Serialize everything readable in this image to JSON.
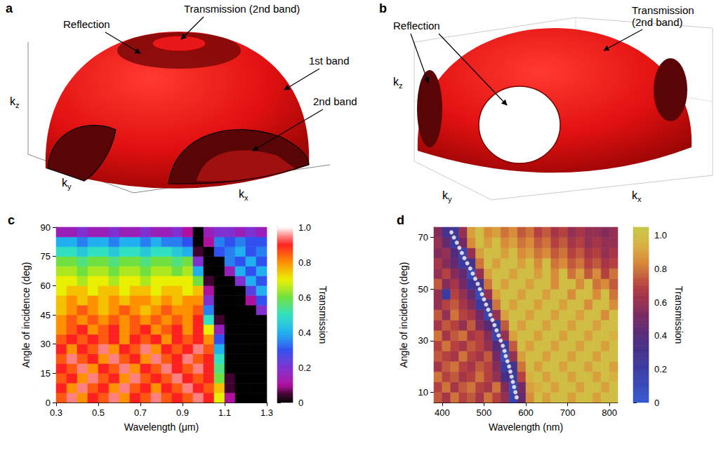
{
  "diagrams": [
    {
      "panel": "a",
      "axes": [
        {
          "base": "k",
          "sub": "z"
        },
        {
          "base": "k",
          "sub": "y"
        },
        {
          "base": "k",
          "sub": "x"
        }
      ],
      "labels": [
        "Reflection",
        "Transmission (2nd band)",
        "1st band",
        "2nd band"
      ]
    },
    {
      "panel": "b",
      "axes": [
        {
          "base": "k",
          "sub": "z"
        },
        {
          "base": "k",
          "sub": "y"
        },
        {
          "base": "k",
          "sub": "x"
        }
      ],
      "labels": [
        "Reflection",
        "Transmission (2nd band)"
      ]
    }
  ],
  "chart_data": [
    {
      "type": "heatmap",
      "panel": "c",
      "xlabel": "Wavelength (μm)",
      "ylabel": "Angle of incidence (deg)",
      "xlim": [
        0.3,
        1.3
      ],
      "xticks": [
        0.3,
        0.5,
        0.7,
        0.9,
        1.1,
        1.3
      ],
      "ylim": [
        0,
        90
      ],
      "yticks": [
        0,
        15,
        30,
        45,
        60,
        75,
        90
      ],
      "grid": false,
      "x": [
        0.325,
        0.375,
        0.425,
        0.475,
        0.525,
        0.575,
        0.625,
        0.675,
        0.725,
        0.775,
        0.825,
        0.875,
        0.925,
        0.975,
        1.025,
        1.075,
        1.125,
        1.175,
        1.225,
        1.275
      ],
      "y": [
        2.5,
        7.5,
        12.5,
        17.5,
        22.5,
        27.5,
        32.5,
        37.5,
        42.5,
        47.5,
        52.5,
        57.5,
        62.5,
        67.5,
        72.5,
        77.5,
        82.5,
        87.5
      ],
      "values": [
        [
          0.85,
          0.95,
          0.8,
          0.9,
          0.85,
          0.95,
          0.8,
          0.9,
          0.85,
          0.95,
          0.85,
          0.9,
          0.85,
          0.95,
          0.9,
          0.7,
          0.1,
          0,
          0,
          0
        ],
        [
          0.9,
          0.8,
          0.95,
          0.85,
          0.9,
          0.8,
          0.95,
          0.85,
          0.9,
          0.8,
          0.9,
          0.85,
          0.95,
          0.9,
          0.85,
          0.75,
          0.05,
          0,
          0,
          0
        ],
        [
          0.85,
          0.9,
          0.8,
          0.95,
          0.85,
          0.9,
          0.8,
          0.95,
          0.85,
          0.9,
          0.85,
          0.95,
          0.9,
          0.85,
          0.9,
          0.6,
          0.05,
          0,
          0,
          0
        ],
        [
          0.9,
          0.85,
          0.95,
          0.8,
          0.9,
          0.85,
          0.95,
          0.8,
          0.9,
          0.85,
          0.95,
          0.9,
          0.85,
          0.95,
          0.9,
          0.55,
          0,
          0,
          0,
          0
        ],
        [
          0.85,
          0.95,
          0.85,
          0.9,
          0.8,
          0.95,
          0.85,
          0.9,
          0.8,
          0.95,
          0.85,
          0.9,
          0.95,
          0.85,
          0.9,
          0.5,
          0,
          0,
          0,
          0
        ],
        [
          0.9,
          0.8,
          0.9,
          0.85,
          0.95,
          0.8,
          0.9,
          0.85,
          0.95,
          0.8,
          0.9,
          0.85,
          0.9,
          0.95,
          0.85,
          0.4,
          0,
          0,
          0,
          0
        ],
        [
          0.85,
          0.9,
          0.85,
          0.9,
          0.85,
          0.9,
          0.8,
          0.9,
          0.85,
          0.9,
          0.8,
          0.9,
          0.85,
          0.9,
          0.8,
          0.3,
          0,
          0,
          0,
          0
        ],
        [
          0.8,
          0.85,
          0.9,
          0.8,
          0.85,
          0.9,
          0.8,
          0.85,
          0.9,
          0.8,
          0.85,
          0.9,
          0.8,
          0.9,
          0.7,
          0.15,
          0,
          0,
          0,
          0
        ],
        [
          0.8,
          0.85,
          0.8,
          0.85,
          0.8,
          0.85,
          0.8,
          0.85,
          0.8,
          0.85,
          0.8,
          0.85,
          0.8,
          0.9,
          0.5,
          0.05,
          0,
          0,
          0,
          0
        ],
        [
          0.75,
          0.8,
          0.85,
          0.8,
          0.75,
          0.8,
          0.85,
          0.8,
          0.75,
          0.8,
          0.85,
          0.8,
          0.8,
          0.85,
          0.35,
          0,
          0,
          0,
          0,
          0.2
        ],
        [
          0.75,
          0.8,
          0.75,
          0.8,
          0.75,
          0.8,
          0.75,
          0.8,
          0.8,
          0.75,
          0.8,
          0.75,
          0.8,
          0.8,
          0.2,
          0,
          0,
          0,
          0.1,
          0.3
        ],
        [
          0.7,
          0.75,
          0.75,
          0.7,
          0.75,
          0.75,
          0.7,
          0.75,
          0.75,
          0.7,
          0.75,
          0.75,
          0.7,
          0.75,
          0.1,
          0,
          0,
          0,
          0.25,
          0.4
        ],
        [
          0.7,
          0.7,
          0.65,
          0.7,
          0.7,
          0.65,
          0.7,
          0.7,
          0.65,
          0.7,
          0.7,
          0.7,
          0.7,
          0.6,
          0.05,
          0,
          0,
          0.2,
          0.4,
          0.3
        ],
        [
          0.65,
          0.65,
          0.6,
          0.65,
          0.65,
          0.6,
          0.65,
          0.65,
          0.6,
          0.65,
          0.65,
          0.6,
          0.65,
          0.4,
          0,
          0,
          0.15,
          0.4,
          0.3,
          0.4
        ],
        [
          0.6,
          0.6,
          0.55,
          0.6,
          0.6,
          0.55,
          0.6,
          0.6,
          0.55,
          0.6,
          0.6,
          0.55,
          0.6,
          0.2,
          0,
          0,
          0.35,
          0.3,
          0.4,
          0.3
        ],
        [
          0.5,
          0.5,
          0.45,
          0.5,
          0.5,
          0.45,
          0.5,
          0.5,
          0.45,
          0.5,
          0.5,
          0.45,
          0.4,
          0.05,
          0,
          0.3,
          0.35,
          0.4,
          0.3,
          0.35
        ],
        [
          0.4,
          0.4,
          0.35,
          0.4,
          0.4,
          0.35,
          0.4,
          0.4,
          0.35,
          0.4,
          0.35,
          0.35,
          0.3,
          0,
          0.1,
          0.35,
          0.3,
          0.35,
          0.3,
          0.3
        ],
        [
          0.15,
          0.15,
          0.2,
          0.15,
          0.15,
          0.2,
          0.15,
          0.15,
          0.2,
          0.15,
          0.15,
          0.2,
          0.1,
          0,
          0.15,
          0.2,
          0.2,
          0.15,
          0.2,
          0.15
        ]
      ],
      "colorbar": {
        "label": "Transmission",
        "range": [
          0,
          1
        ],
        "ticks": [
          0,
          0.2,
          0.4,
          0.6,
          0.8,
          {
            "value": 1,
            "label": "1.0"
          }
        ]
      }
    },
    {
      "type": "heatmap",
      "panel": "d",
      "xlabel": "Wavelength (nm)",
      "ylabel": "Angle of incidence (deg)",
      "xlim": [
        380,
        820
      ],
      "xticks": [
        400,
        500,
        600,
        700,
        800
      ],
      "ylim": [
        6,
        74
      ],
      "yticks": [
        10,
        30,
        50,
        70
      ],
      "grid": false,
      "x": [
        390,
        410,
        430,
        450,
        470,
        490,
        510,
        530,
        550,
        570,
        590,
        610,
        630,
        650,
        670,
        690,
        710,
        730,
        750,
        770,
        790,
        810
      ],
      "y": [
        8,
        12,
        16,
        20,
        24,
        28,
        32,
        36,
        40,
        44,
        48,
        52,
        56,
        60,
        64,
        68,
        72
      ],
      "values": [
        [
          0.75,
          0.65,
          0.8,
          0.7,
          0.75,
          0.65,
          0.8,
          0.7,
          0.6,
          0.15,
          0.45,
          0.85,
          1,
          0.9,
          1,
          1,
          0.9,
          1,
          1,
          0.9,
          1,
          1
        ],
        [
          0.7,
          0.8,
          0.65,
          0.75,
          0.8,
          0.7,
          0.65,
          0.8,
          0.55,
          0.1,
          0.5,
          0.9,
          0.95,
          1,
          0.9,
          1,
          1,
          0.9,
          1,
          1,
          0.9,
          1
        ],
        [
          0.8,
          0.7,
          0.75,
          0.65,
          0.7,
          0.8,
          0.7,
          0.6,
          0.35,
          0.2,
          0.7,
          0.95,
          1,
          0.9,
          1,
          1,
          0.9,
          1,
          1,
          0.9,
          1,
          0.95
        ],
        [
          0.65,
          0.75,
          0.8,
          0.7,
          0.65,
          0.75,
          0.7,
          0.55,
          0.2,
          0.3,
          0.8,
          1,
          0.9,
          1,
          1,
          0.9,
          1,
          1,
          0.9,
          1,
          1,
          0.9
        ],
        [
          0.75,
          0.7,
          0.65,
          0.8,
          0.7,
          0.65,
          0.75,
          0.5,
          0.1,
          0.6,
          0.9,
          1,
          1,
          0.9,
          1,
          1,
          0.9,
          1,
          1,
          0.9,
          1,
          1
        ],
        [
          0.7,
          0.8,
          0.7,
          0.65,
          0.75,
          0.7,
          0.6,
          0.4,
          0.2,
          0.75,
          1,
          0.9,
          1,
          1,
          0.9,
          1,
          1,
          0.9,
          1,
          1,
          0.9,
          1
        ],
        [
          0.8,
          0.65,
          0.75,
          0.8,
          0.65,
          0.7,
          0.55,
          0.15,
          0.6,
          0.9,
          1,
          1,
          0.9,
          1,
          1,
          0.9,
          1,
          1,
          0.9,
          1,
          1,
          0.95
        ],
        [
          0.65,
          0.75,
          0.7,
          0.6,
          0.75,
          0.55,
          0.4,
          0.2,
          0.75,
          1,
          0.9,
          1,
          1,
          0.9,
          1,
          1,
          0.9,
          1,
          1,
          0.9,
          1,
          1
        ],
        [
          0.75,
          0.6,
          0.8,
          0.7,
          0.65,
          0.5,
          0.15,
          0.6,
          0.9,
          1,
          1,
          0.9,
          1,
          1,
          0.9,
          1,
          1,
          0.9,
          1,
          1,
          0.85,
          1
        ],
        [
          0.6,
          0.7,
          0.75,
          0.65,
          0.55,
          0.2,
          0.3,
          0.8,
          1,
          0.9,
          1,
          1,
          0.9,
          1,
          1,
          0.9,
          1,
          1,
          0.85,
          1,
          1,
          0.85
        ],
        [
          0.6,
          0.2,
          0.7,
          0.6,
          0.45,
          0.1,
          0.6,
          0.9,
          1,
          1,
          0.9,
          1,
          1,
          0.9,
          1,
          1,
          0.85,
          1,
          1,
          0.85,
          1,
          0.8
        ],
        [
          0.75,
          0.55,
          0.65,
          0.5,
          0.25,
          0.3,
          0.8,
          1,
          0.9,
          1,
          1,
          0.9,
          1,
          1,
          0.85,
          1,
          1,
          0.85,
          1,
          0.8,
          0.85,
          0.75
        ],
        [
          0.6,
          0.7,
          0.55,
          0.45,
          0.1,
          0.6,
          0.9,
          1,
          1,
          0.9,
          1,
          1,
          0.9,
          1,
          0.85,
          1,
          0.8,
          0.9,
          0.75,
          0.85,
          0.7,
          0.8
        ],
        [
          0.65,
          0.55,
          0.45,
          0.2,
          0.3,
          0.8,
          1,
          0.9,
          1,
          1,
          0.9,
          1,
          0.85,
          1,
          0.8,
          0.85,
          0.75,
          0.8,
          0.7,
          0.75,
          0.65,
          0.7
        ],
        [
          0.55,
          0.6,
          0.4,
          0.15,
          0.6,
          0.9,
          1,
          1,
          0.9,
          1,
          0.85,
          0.9,
          0.8,
          0.85,
          0.75,
          0.8,
          0.7,
          0.75,
          0.65,
          0.7,
          0.6,
          0.65
        ],
        [
          0.6,
          0.45,
          0.2,
          0.5,
          0.85,
          1,
          0.9,
          1,
          0.85,
          0.9,
          0.8,
          0.85,
          0.75,
          0.8,
          0.7,
          0.75,
          0.65,
          0.7,
          0.6,
          0.65,
          0.6,
          0.6
        ],
        [
          0.55,
          0.3,
          0.25,
          0.6,
          0.9,
          1,
          0.85,
          0.9,
          0.8,
          0.85,
          0.75,
          0.8,
          0.7,
          0.75,
          0.65,
          0.7,
          0.6,
          0.65,
          0.6,
          0.6,
          0.55,
          0.6
        ]
      ],
      "curve": {
        "color": "#ffffff",
        "marker": "circle",
        "x": [
          578,
          575,
          572,
          569,
          566,
          563,
          560,
          556,
          552,
          549,
          545,
          540,
          535,
          530,
          525,
          520,
          515,
          510,
          505,
          500,
          495,
          490,
          485,
          479,
          473,
          467,
          460,
          453,
          447,
          441,
          435,
          428,
          422
        ],
        "y": [
          8,
          10,
          12,
          14,
          16,
          18,
          20,
          22,
          24,
          26,
          28,
          30,
          32,
          34,
          36,
          38,
          40,
          42,
          44,
          46,
          48,
          50,
          52,
          54,
          56,
          58,
          60,
          62,
          64,
          66,
          68,
          70,
          72
        ]
      },
      "colorbar": {
        "label": "Transmission",
        "range": [
          0,
          1.05
        ],
        "ticks": [
          0,
          0.2,
          0.4,
          0.6,
          0.8,
          {
            "value": 1,
            "label": "1.0"
          }
        ]
      }
    }
  ]
}
